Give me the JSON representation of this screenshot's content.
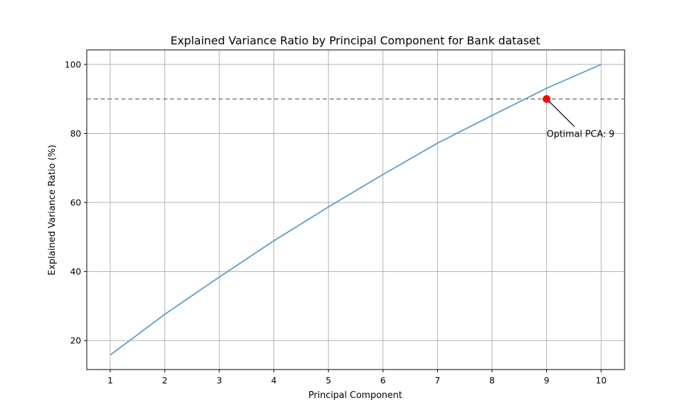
{
  "chart_data": {
    "type": "line",
    "title": "Explained Variance Ratio by Principal Component for Bank dataset",
    "xlabel": "Principal Component",
    "ylabel": "Explained Variance Ratio (%)",
    "x": [
      1,
      2,
      3,
      4,
      5,
      6,
      7,
      8,
      9,
      10
    ],
    "series": [
      {
        "values": [
          15.8,
          27.6,
          38.4,
          48.9,
          58.7,
          68.1,
          77.2,
          85.2,
          93.1,
          100.0
        ],
        "color": "#5b9ec9"
      }
    ],
    "xticks": [
      1,
      2,
      3,
      4,
      5,
      6,
      7,
      8,
      9,
      10
    ],
    "yticks": [
      20,
      40,
      60,
      80,
      100
    ],
    "xlim": [
      0.57,
      10.43
    ],
    "ylim": [
      11.6,
      104.2
    ],
    "grid": true,
    "threshold": {
      "y": 90,
      "color": "#808080",
      "style": "dashed"
    },
    "marker": {
      "x": 9,
      "y": 90,
      "color": "#ff0000"
    },
    "annotation": {
      "text": "Optimal PCA: 9",
      "x_text": 9,
      "y_text": 80
    }
  }
}
